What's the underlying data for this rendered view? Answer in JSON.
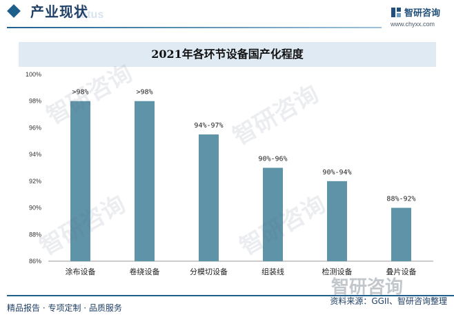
{
  "header": {
    "title": "产业现状",
    "ghost_text": "tatus",
    "logo_text": "智研咨询",
    "logo_url": "www.chyxx.com"
  },
  "footer": {
    "left": "精品报告 · 专项定制 · 品质服务",
    "source": "资料来源：GGII、智研咨询整理"
  },
  "watermark_text": "智研咨询",
  "chart_data": {
    "type": "bar",
    "title": "2021年各环节设备国产化程度",
    "xlabel": "",
    "ylabel": "",
    "categories": [
      "涂布设备",
      "卷绕设备",
      "分模切设备",
      "组装线",
      "检测设备",
      "叠片设备"
    ],
    "values": [
      98,
      98,
      95.5,
      93,
      92,
      90
    ],
    "data_labels": [
      ">98%",
      ">98%",
      "94%-97%",
      "90%-96%",
      "90%-94%",
      "88%-92%"
    ],
    "ylim": [
      86,
      100
    ],
    "yticks": [
      86,
      88,
      90,
      92,
      94,
      96,
      98,
      100
    ],
    "ytick_suffix": "%",
    "bar_color": "#5f93a8",
    "grid": false,
    "legend": "none"
  }
}
